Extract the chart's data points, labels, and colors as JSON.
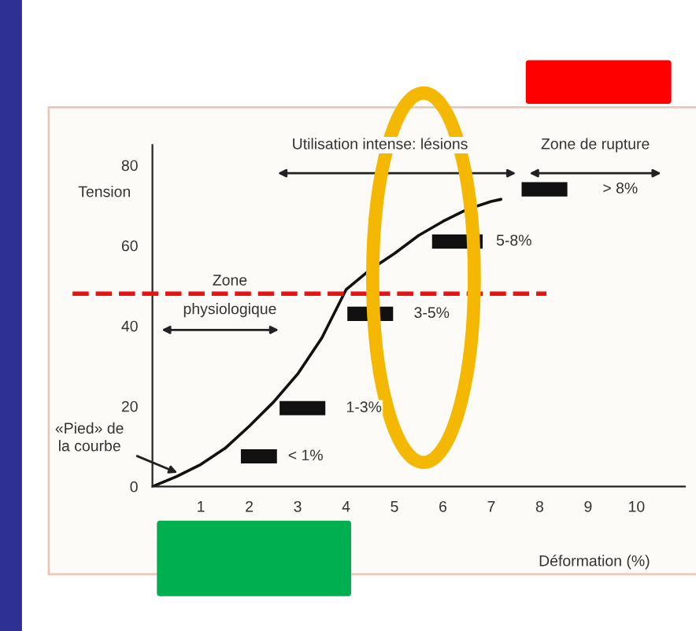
{
  "chart_data": {
    "type": "line",
    "xlabel": "Déformation (%)",
    "ylabel": "Tension",
    "x": [
      0,
      0.5,
      1,
      1.5,
      2,
      2.5,
      3,
      3.5,
      4,
      4.5,
      5,
      5.5,
      6,
      6.5,
      7,
      7.2
    ],
    "series": [
      {
        "color": "#111111",
        "values": [
          0,
          2.5,
          5.5,
          9.5,
          15,
          21,
          28,
          37,
          49,
          54,
          58,
          62.5,
          66,
          69,
          71,
          71.5
        ]
      }
    ],
    "xlim": [
      0,
      11
    ],
    "ylim": [
      0,
      85
    ],
    "xticks": [
      1,
      2,
      3,
      4,
      5,
      6,
      7,
      8,
      9,
      10
    ],
    "yticks": [
      0,
      20,
      40,
      60,
      80
    ],
    "grid": false,
    "legend": false,
    "marker": "none",
    "line_style": "solid",
    "ref_lines": [
      {
        "axis": "y",
        "value": 48,
        "color": "#ee1111",
        "line_style": "dashed"
      }
    ],
    "annotations": [
      "Utilisation intense: lésions",
      "Zone de rupture",
      "> 8%",
      "5-8%",
      "3-5%",
      "1-3%",
      "< 1%",
      "Zone\nphysiologique",
      {
        "text": "«Pied» de\nla courbe",
        "x": 0.6,
        "y": 3
      }
    ]
  }
}
